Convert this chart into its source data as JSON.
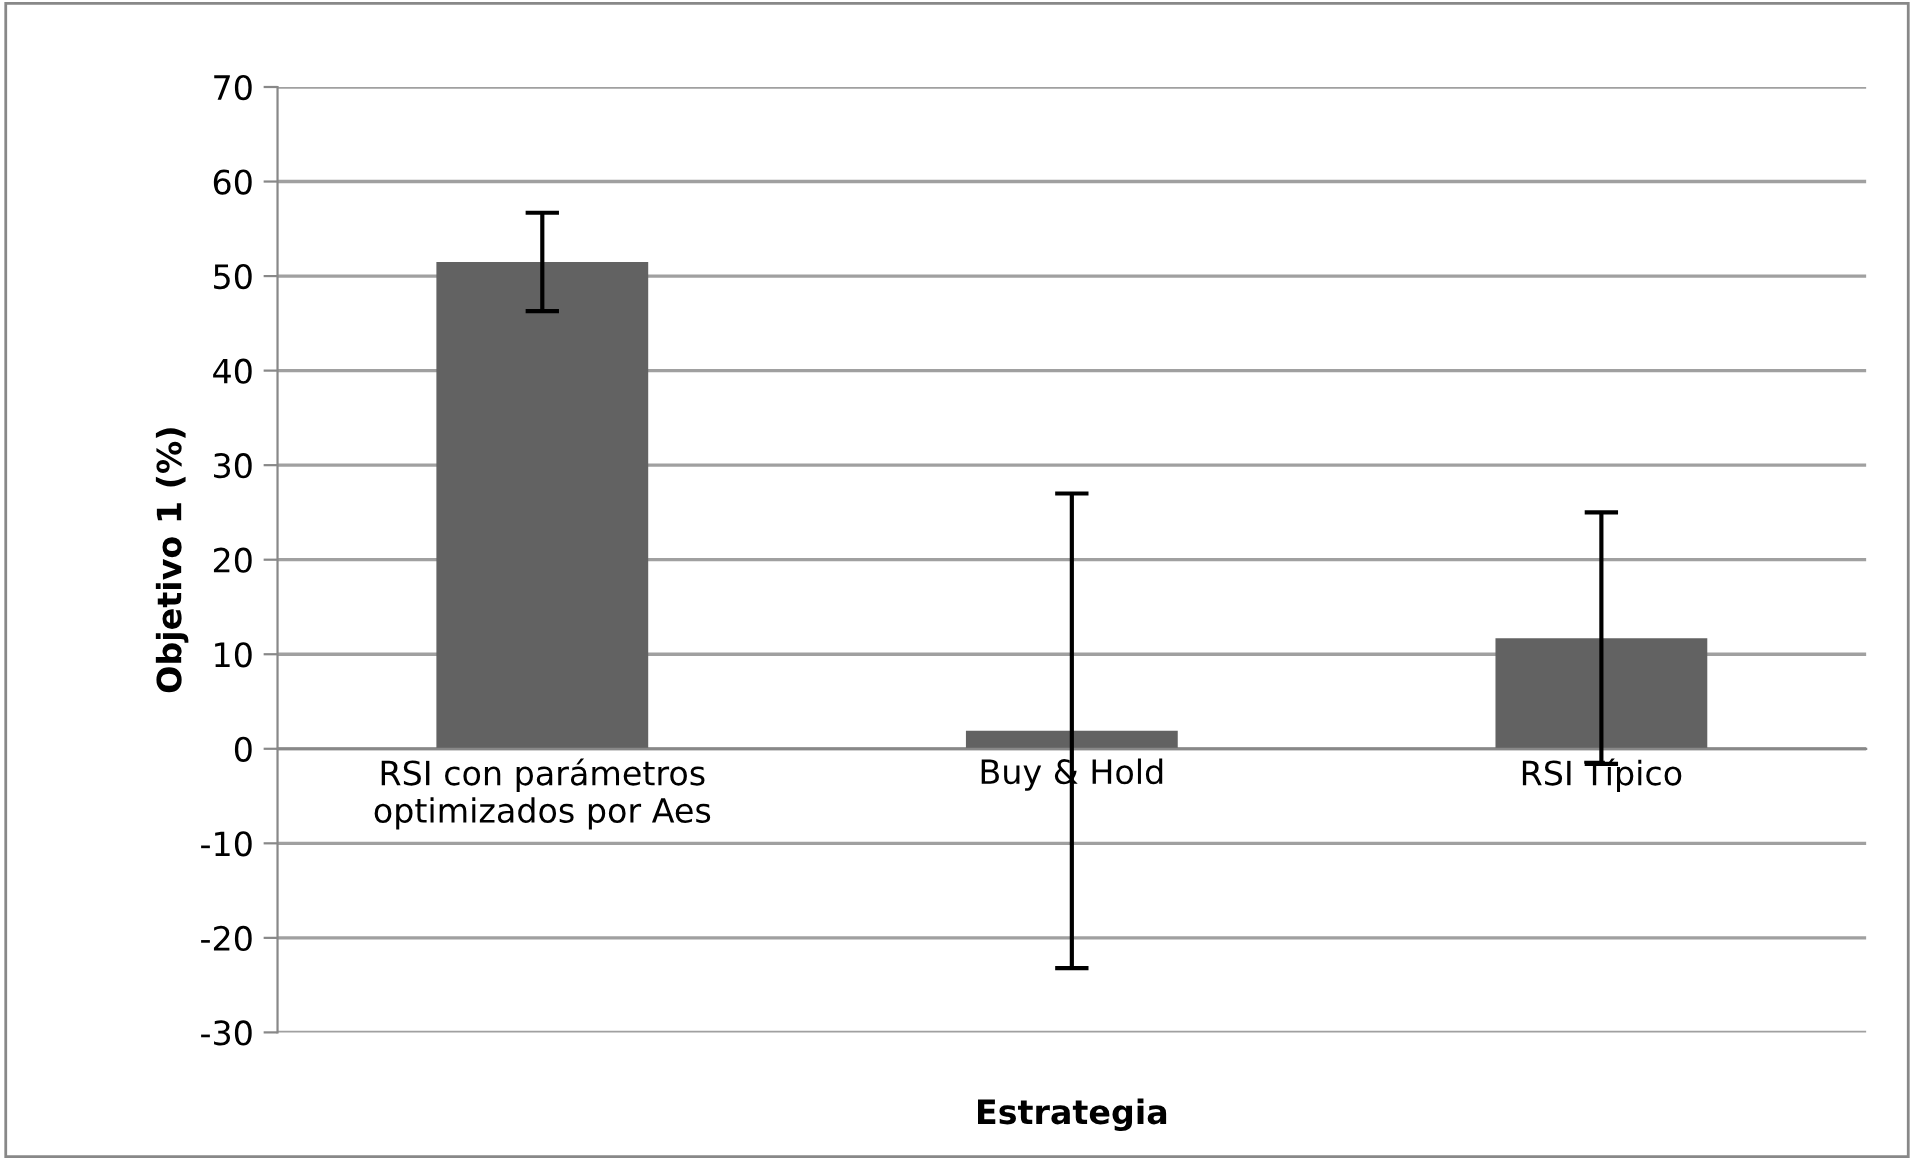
{
  "chart_data": {
    "type": "bar",
    "xlabel": "Estrategia",
    "ylabel": "Objetivo 1 (%)",
    "categories": [
      "RSI con parámetros\noptimizados por Aes",
      "Buy & Hold",
      "RSI Típico"
    ],
    "values": [
      51.5,
      1.9,
      11.7
    ],
    "errors": [
      5.2,
      25.1,
      13.3
    ],
    "color": "#626262",
    "ylim": [
      -30,
      70
    ],
    "yticks": [
      -30,
      -20,
      -10,
      0,
      10,
      20,
      30,
      40,
      50,
      60,
      70
    ],
    "grid": "y"
  }
}
